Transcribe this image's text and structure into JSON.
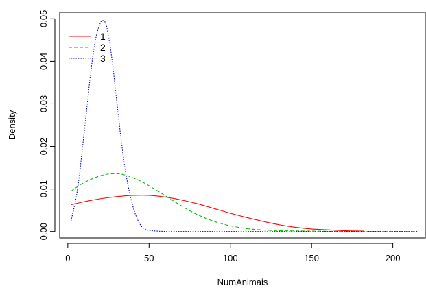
{
  "chart_data": {
    "type": "line",
    "title": "",
    "xlabel": "NumAnimais",
    "ylabel": "Density",
    "xlim": [
      -5,
      220
    ],
    "ylim": [
      -0.0015,
      0.0515
    ],
    "x_ticks": [
      0,
      50,
      100,
      150,
      200
    ],
    "y_ticks": [
      0.0,
      0.01,
      0.02,
      0.03,
      0.04,
      0.05
    ],
    "x_tick_labels": [
      "0",
      "50",
      "100",
      "150",
      "200"
    ],
    "y_tick_labels": [
      "0.00",
      "0.01",
      "0.02",
      "0.03",
      "0.04",
      "0.05"
    ],
    "grid": false,
    "legend_position": "top-left",
    "series": [
      {
        "name": "1",
        "color": "#ff0000",
        "dash": "solid",
        "x": [
          2,
          10,
          20,
          30,
          40,
          50,
          60,
          70,
          80,
          90,
          100,
          110,
          120,
          130,
          140,
          150,
          160,
          170,
          182
        ],
        "y": [
          0.0063,
          0.007,
          0.0077,
          0.0082,
          0.0085,
          0.0085,
          0.0081,
          0.0074,
          0.0065,
          0.0054,
          0.0043,
          0.0033,
          0.0024,
          0.0016,
          0.001,
          0.0006,
          0.0004,
          0.0002,
          0.0001
        ]
      },
      {
        "name": "2",
        "color": "#00bb00",
        "dash": "dashed",
        "x": [
          2,
          10,
          20,
          28,
          35,
          45,
          55,
          65,
          75,
          85,
          95,
          105,
          115,
          130,
          150,
          175,
          200,
          215
        ],
        "y": [
          0.0095,
          0.0115,
          0.0131,
          0.0136,
          0.0133,
          0.0118,
          0.0096,
          0.0072,
          0.0049,
          0.0031,
          0.0018,
          0.001,
          0.0005,
          0.0002,
          0.0001,
          0.0,
          0.0,
          0.0
        ]
      },
      {
        "name": "3",
        "color": "#0000cc",
        "dash": "dotted",
        "x": [
          2,
          6,
          10,
          14,
          17,
          20,
          22,
          24,
          27,
          30,
          33,
          36,
          40,
          44,
          48,
          55,
          65,
          80,
          100,
          150,
          200,
          215
        ],
        "y": [
          0.0025,
          0.01,
          0.023,
          0.037,
          0.045,
          0.049,
          0.0495,
          0.048,
          0.041,
          0.031,
          0.021,
          0.013,
          0.006,
          0.002,
          0.0005,
          0.0001,
          0.0,
          0.0,
          0.0,
          0.0,
          0.0,
          0.0
        ]
      }
    ]
  }
}
